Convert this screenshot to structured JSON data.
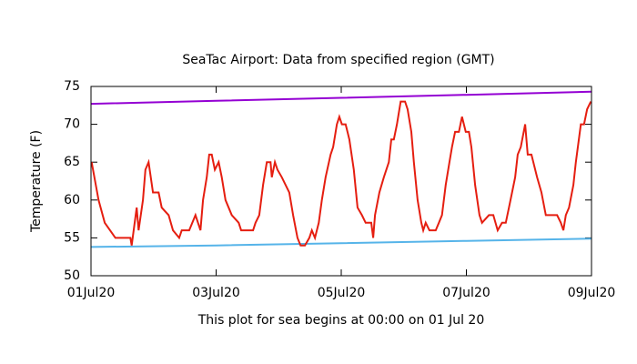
{
  "chart_data": {
    "type": "line",
    "title": "SeaTac Airport:  Data from specified region (GMT)",
    "xlabel": "This plot for sea begins at 00:00 on 01 Jul 20",
    "ylabel": "Temperature (F)",
    "xlim": [
      0,
      8
    ],
    "xticks": [
      {
        "value": 0,
        "label": "01Jul20"
      },
      {
        "value": 2,
        "label": "03Jul20"
      },
      {
        "value": 4,
        "label": "05Jul20"
      },
      {
        "value": 6,
        "label": "07Jul20"
      },
      {
        "value": 8,
        "label": "09Jul20"
      }
    ],
    "ylim": [
      50,
      75
    ],
    "yticks": [
      50,
      55,
      60,
      65,
      70,
      75
    ],
    "grid": false,
    "series": [
      {
        "color": "#9400d3",
        "x": [
          0,
          2,
          4,
          6,
          8
        ],
        "values": [
          72.7,
          73.1,
          73.5,
          73.9,
          74.3
        ]
      },
      {
        "color": "#56b4e9",
        "x": [
          0,
          2,
          4,
          6,
          8
        ],
        "values": [
          53.8,
          54.0,
          54.3,
          54.6,
          54.9
        ]
      },
      {
        "color": "#e51e10",
        "x": [
          0.01,
          0.12,
          0.22,
          0.39,
          0.63,
          0.65,
          0.73,
          0.76,
          0.83,
          0.87,
          0.92,
          0.99,
          1.08,
          1.13,
          1.24,
          1.31,
          1.41,
          1.45,
          1.57,
          1.67,
          1.75,
          1.79,
          1.85,
          1.89,
          1.93,
          1.98,
          2.04,
          2.09,
          2.15,
          2.25,
          2.36,
          2.4,
          2.59,
          2.63,
          2.69,
          2.75,
          2.81,
          2.87,
          2.89,
          2.94,
          2.98,
          3.05,
          3.17,
          3.23,
          3.3,
          3.35,
          3.42,
          3.49,
          3.53,
          3.58,
          3.64,
          3.69,
          3.75,
          3.83,
          3.87,
          3.93,
          3.97,
          4.01,
          4.07,
          4.13,
          4.2,
          4.26,
          4.33,
          4.39,
          4.48,
          4.51,
          4.54,
          4.61,
          4.68,
          4.76,
          4.8,
          4.84,
          4.89,
          4.95,
          5.02,
          5.06,
          5.12,
          5.16,
          5.22,
          5.28,
          5.31,
          5.35,
          5.41,
          5.51,
          5.56,
          5.61,
          5.67,
          5.73,
          5.77,
          5.82,
          5.88,
          5.93,
          5.99,
          6.04,
          6.08,
          6.14,
          6.21,
          6.25,
          6.36,
          6.43,
          6.5,
          6.57,
          6.63,
          6.68,
          6.73,
          6.78,
          6.82,
          6.87,
          6.94,
          6.98,
          7.04,
          7.13,
          7.2,
          7.27,
          7.36,
          7.45,
          7.51,
          7.55,
          7.59,
          7.64,
          7.71,
          7.75,
          7.83,
          7.88,
          7.93,
          7.99
        ],
        "values": [
          65,
          60,
          57,
          55,
          55,
          54,
          59,
          56,
          60,
          64,
          65,
          61,
          61,
          59,
          58,
          56,
          55,
          56,
          56,
          58,
          56,
          60,
          63,
          66,
          66,
          64,
          65,
          63,
          60,
          58,
          57,
          56,
          56,
          57,
          58,
          62,
          65,
          65,
          63,
          65,
          64,
          63,
          61,
          58,
          55,
          54,
          54,
          55,
          56,
          55,
          57,
          60,
          63,
          66,
          67,
          70,
          71,
          70,
          70,
          68,
          64,
          59,
          58,
          57,
          57,
          55,
          58,
          61,
          63,
          65,
          68,
          68,
          70,
          73,
          73,
          72,
          69,
          65,
          60,
          57,
          56,
          57,
          56,
          56,
          57,
          58,
          62,
          65,
          67,
          69,
          69,
          71,
          69,
          69,
          67,
          62,
          58,
          57,
          58,
          58,
          56,
          57,
          57,
          59,
          61,
          63,
          66,
          67,
          70,
          66,
          66,
          63,
          61,
          58,
          58,
          58,
          57,
          56,
          58,
          59,
          62,
          65,
          70,
          70,
          72,
          73
        ]
      }
    ]
  }
}
